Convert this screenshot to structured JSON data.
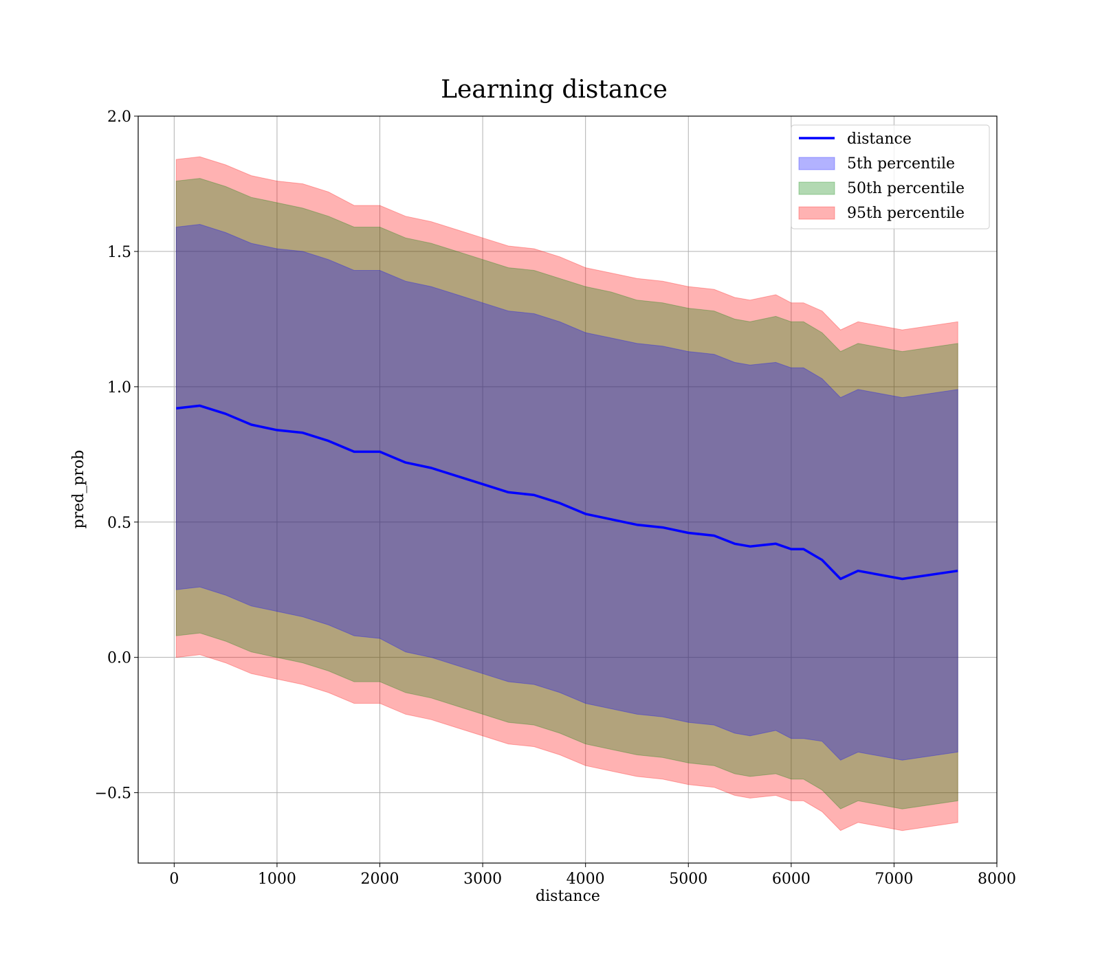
{
  "chart_data": {
    "type": "area",
    "title": "Learning distance",
    "xlabel": "distance",
    "ylabel": "pred_prob",
    "xlim": [
      -350,
      8000
    ],
    "ylim": [
      -0.76,
      2.0
    ],
    "xticks": [
      0,
      1000,
      2000,
      3000,
      4000,
      5000,
      6000,
      7000,
      8000
    ],
    "xtick_labels": [
      "0",
      "1000",
      "2000",
      "3000",
      "4000",
      "5000",
      "6000",
      "7000",
      "8000"
    ],
    "yticks": [
      -0.5,
      0.0,
      0.5,
      1.0,
      1.5,
      2.0
    ],
    "ytick_labels": [
      "−0.5",
      "0.0",
      "0.5",
      "1.0",
      "1.5",
      "2.0"
    ],
    "grid": true,
    "legend_position": "top-right",
    "x": [
      20,
      250,
      500,
      750,
      1000,
      1250,
      1500,
      1750,
      2000,
      2250,
      2500,
      2750,
      3000,
      3250,
      3500,
      3750,
      4000,
      4250,
      4500,
      4750,
      5000,
      5250,
      5450,
      5600,
      5850,
      6000,
      6120,
      6300,
      6480,
      6650,
      7080,
      7620
    ],
    "series": [
      {
        "name": "distance",
        "kind": "line",
        "color": "#0000ff",
        "values": [
          0.92,
          0.93,
          0.9,
          0.86,
          0.84,
          0.83,
          0.8,
          0.76,
          0.76,
          0.72,
          0.7,
          0.67,
          0.64,
          0.61,
          0.6,
          0.57,
          0.53,
          0.51,
          0.49,
          0.48,
          0.46,
          0.45,
          0.42,
          0.41,
          0.42,
          0.4,
          0.4,
          0.36,
          0.29,
          0.32,
          0.29,
          0.32
        ]
      },
      {
        "name": "5th percentile",
        "kind": "band",
        "color": "#0000ff",
        "lower": [
          0.25,
          0.26,
          0.23,
          0.19,
          0.17,
          0.15,
          0.12,
          0.08,
          0.07,
          0.02,
          0.0,
          -0.03,
          -0.06,
          -0.09,
          -0.1,
          -0.13,
          -0.17,
          -0.19,
          -0.21,
          -0.22,
          -0.24,
          -0.25,
          -0.28,
          -0.29,
          -0.27,
          -0.3,
          -0.3,
          -0.31,
          -0.38,
          -0.35,
          -0.38,
          -0.35
        ],
        "upper": [
          1.59,
          1.6,
          1.57,
          1.53,
          1.51,
          1.5,
          1.47,
          1.43,
          1.43,
          1.39,
          1.37,
          1.34,
          1.31,
          1.28,
          1.27,
          1.24,
          1.2,
          1.18,
          1.16,
          1.15,
          1.13,
          1.12,
          1.09,
          1.08,
          1.09,
          1.07,
          1.07,
          1.03,
          0.96,
          0.99,
          0.96,
          0.99
        ]
      },
      {
        "name": "50th percentile",
        "kind": "band",
        "color": "#008000",
        "lower": [
          0.08,
          0.09,
          0.06,
          0.02,
          0.0,
          -0.02,
          -0.05,
          -0.09,
          -0.09,
          -0.13,
          -0.15,
          -0.18,
          -0.21,
          -0.24,
          -0.25,
          -0.28,
          -0.32,
          -0.34,
          -0.36,
          -0.37,
          -0.39,
          -0.4,
          -0.43,
          -0.44,
          -0.43,
          -0.45,
          -0.45,
          -0.49,
          -0.56,
          -0.53,
          -0.56,
          -0.53
        ],
        "upper": [
          1.76,
          1.77,
          1.74,
          1.7,
          1.68,
          1.66,
          1.63,
          1.59,
          1.59,
          1.55,
          1.53,
          1.5,
          1.47,
          1.44,
          1.43,
          1.4,
          1.37,
          1.35,
          1.32,
          1.31,
          1.29,
          1.28,
          1.25,
          1.24,
          1.26,
          1.24,
          1.24,
          1.2,
          1.13,
          1.16,
          1.13,
          1.16
        ]
      },
      {
        "name": "95th percentile",
        "kind": "band",
        "color": "#ff0000",
        "lower": [
          0.0,
          0.01,
          -0.02,
          -0.06,
          -0.08,
          -0.1,
          -0.13,
          -0.17,
          -0.17,
          -0.21,
          -0.23,
          -0.26,
          -0.29,
          -0.32,
          -0.33,
          -0.36,
          -0.4,
          -0.42,
          -0.44,
          -0.45,
          -0.47,
          -0.48,
          -0.51,
          -0.52,
          -0.51,
          -0.53,
          -0.53,
          -0.57,
          -0.64,
          -0.61,
          -0.64,
          -0.61
        ],
        "upper": [
          1.84,
          1.85,
          1.82,
          1.78,
          1.76,
          1.75,
          1.72,
          1.67,
          1.67,
          1.63,
          1.61,
          1.58,
          1.55,
          1.52,
          1.51,
          1.48,
          1.44,
          1.42,
          1.4,
          1.39,
          1.37,
          1.36,
          1.33,
          1.32,
          1.34,
          1.31,
          1.31,
          1.28,
          1.21,
          1.24,
          1.21,
          1.24
        ]
      }
    ]
  }
}
